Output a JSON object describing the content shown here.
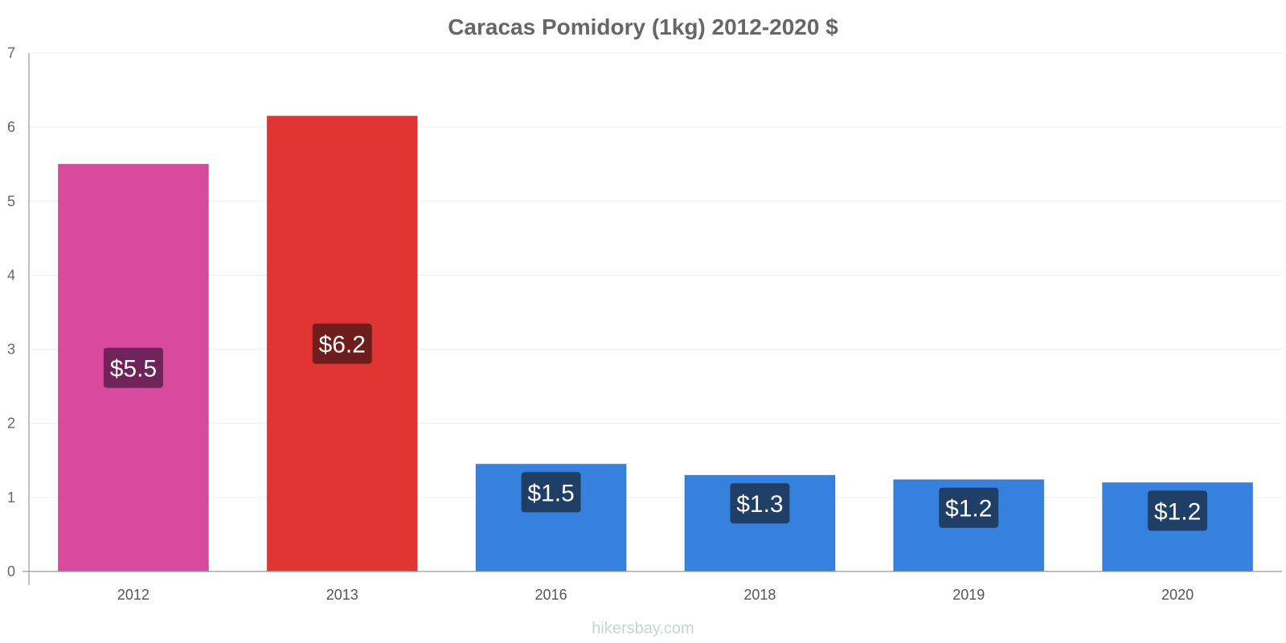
{
  "chart_data": {
    "type": "bar",
    "title": "Caracas Pomidory (1kg) 2012-2020 $",
    "categories": [
      "2012",
      "2013",
      "2016",
      "2018",
      "2019",
      "2020"
    ],
    "values": [
      5.5,
      6.15,
      1.45,
      1.3,
      1.24,
      1.2
    ],
    "data_labels": [
      "$5.5",
      "$6.2",
      "$1.5",
      "$1.3",
      "$1.2",
      "$1.2"
    ],
    "bar_colors": [
      "#d84a9e",
      "#e03535",
      "#3681de",
      "#3681de",
      "#3681de",
      "#3681de"
    ],
    "label_colors": [
      "#6e2458",
      "#6f1e1e",
      "#1f3f66",
      "#1f3f66",
      "#1f3f66",
      "#1f3f66"
    ],
    "yticks": [
      "0",
      "1",
      "2",
      "3",
      "4",
      "5",
      "6",
      "7"
    ],
    "ylim": [
      0,
      7
    ],
    "xlabel": "",
    "ylabel": "",
    "grid": true
  },
  "watermark": "hikersbay.com"
}
